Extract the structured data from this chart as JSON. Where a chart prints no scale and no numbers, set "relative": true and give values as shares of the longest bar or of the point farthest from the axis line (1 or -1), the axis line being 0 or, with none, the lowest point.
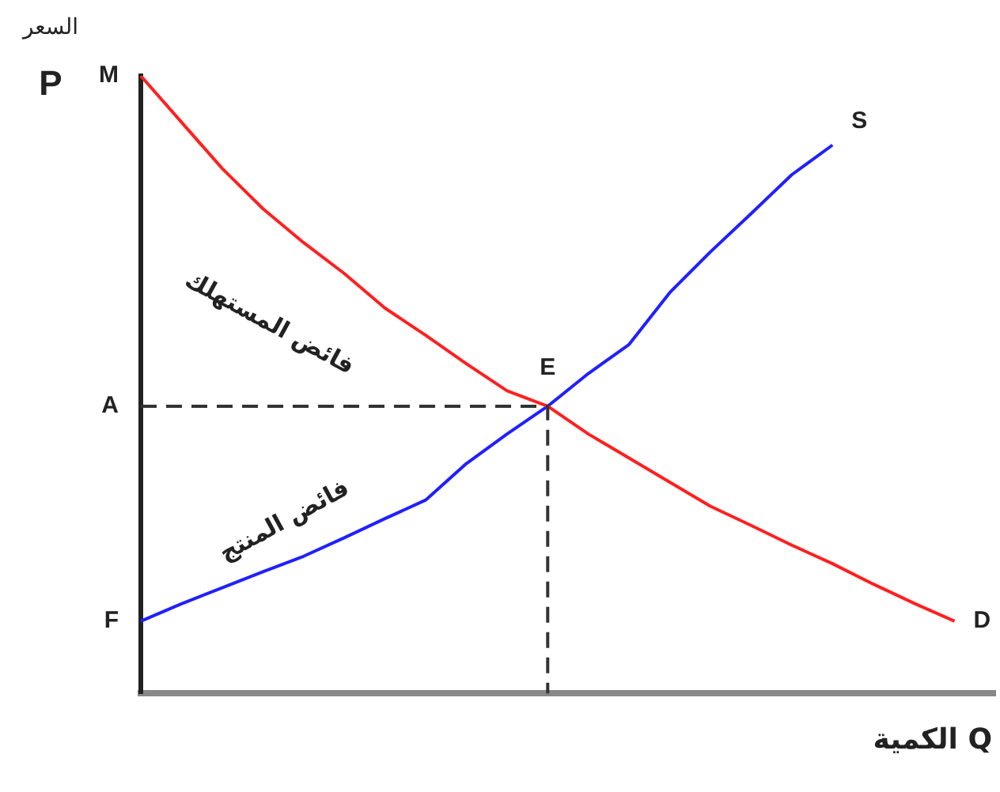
{
  "chart_data": {
    "type": "line",
    "relative": true,
    "xlabel": "الكمية Q",
    "ylabel": "السعر\nP",
    "marker": "none",
    "categories": [
      null,
      null,
      null,
      null,
      null,
      null,
      null,
      null,
      null,
      null,
      null,
      null,
      null,
      null,
      null,
      null,
      null,
      null,
      null,
      null,
      null,
      null
    ],
    "series": [
      {
        "name": "D",
        "color": "#ff2020",
        "values": [
          1.0,
          0.925,
          0.85,
          0.785,
          0.73,
          0.68,
          0.624,
          0.58,
          0.534,
          0.49,
          0.465,
          0.42,
          0.381,
          0.342,
          0.303,
          0.272,
          0.24,
          0.21,
          0.177,
          0.146,
          0.117,
          null
        ]
      },
      {
        "name": "S",
        "color": "#2020ff",
        "values": [
          0.117,
          0.145,
          0.171,
          0.197,
          0.222,
          0.252,
          0.283,
          0.313,
          0.372,
          0.42,
          0.465,
          0.518,
          0.565,
          0.649,
          0.715,
          0.777,
          0.84,
          0.888,
          null,
          null,
          null,
          null
        ]
      }
    ],
    "ref_lines": [
      {
        "axis": "y",
        "value": 0.465,
        "label": "A",
        "color": "#333333",
        "line_style": "dashed"
      }
    ],
    "annotations": [
      "M",
      "F",
      "E",
      "فائض المستهلك",
      "فائض المنتج"
    ]
  }
}
